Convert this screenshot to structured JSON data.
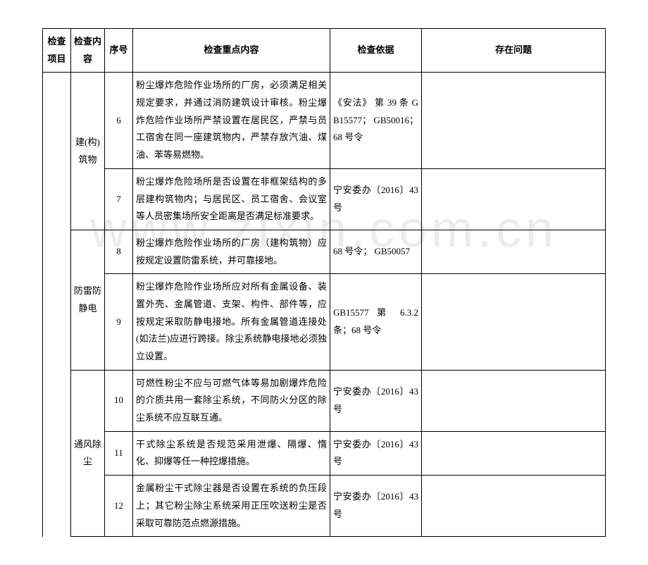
{
  "watermark": "www.zixin.com.cn",
  "headers": {
    "project": "检查项目",
    "content": "检查内容",
    "num": "序号",
    "key": "检查重点内容",
    "basis": "检查依据",
    "issue": "存在问题"
  },
  "groups": [
    {
      "content_label": "建(构)筑物",
      "rows": [
        {
          "num": "6",
          "key": "粉尘爆炸危险作业场所的厂房，必须满足相关规定要求，并通过消防建筑设计审核。粉尘爆炸危险作业场所严禁设置在居民区，严禁与员工宿舍在同一座建筑物内，严禁存放汽油、煤油、苯等易燃物。",
          "basis": "《安法》 第 39 条 GB15577； GB50016； 68 号令",
          "issue": ""
        },
        {
          "num": "7",
          "key": "粉尘爆炸危险场所是否设置在非框架结构的多层建构筑物内；与居民区、员工宿舍、会议室等人员密集场所安全距离是否满足标准要求。",
          "basis": "宁安委办〔2016〕43 号",
          "issue": ""
        }
      ]
    },
    {
      "content_label": "防雷防静电",
      "rows": [
        {
          "num": "8",
          "key": "粉尘爆炸危险作业场所的厂房（建构筑物）应按规定设置防雷系统，并可靠接地。",
          "basis": "68 号令； GB50057",
          "issue": ""
        },
        {
          "num": "9",
          "key": "粉尘爆炸危险作业场所应对所有金属设备、装置外壳、金属管道、支架、构件、部件等，应按规定采取防静电接地。所有金属管道连接处(如法兰)应进行跨接。除尘系统静电接地必须独立设置。",
          "basis": "GB15577 第 6.3.2 条；68 号令",
          "issue": ""
        }
      ]
    },
    {
      "content_label": "通风除尘",
      "rows": [
        {
          "num": "10",
          "key": "可燃性粉尘不应与可燃气体等易加剧爆炸危险的介质共用一套除尘系统，不同防火分区的除尘系统不应互联互通。",
          "basis": "宁安委办〔2016〕43 号",
          "issue": ""
        },
        {
          "num": "11",
          "key": "干式除尘系统是否规范采用泄爆、隔爆、惰化、抑爆等任一种控爆措施。",
          "basis": "宁安委办〔2016〕43 号",
          "issue": ""
        },
        {
          "num": "12",
          "key": "金属粉尘干式除尘器是否设置在系统的负压段上；其它粉尘除尘系统采用正压吹送粉尘是否采取可靠防范点燃源措施。",
          "basis": "宁安委办〔2016〕43 号",
          "issue": ""
        }
      ]
    }
  ]
}
